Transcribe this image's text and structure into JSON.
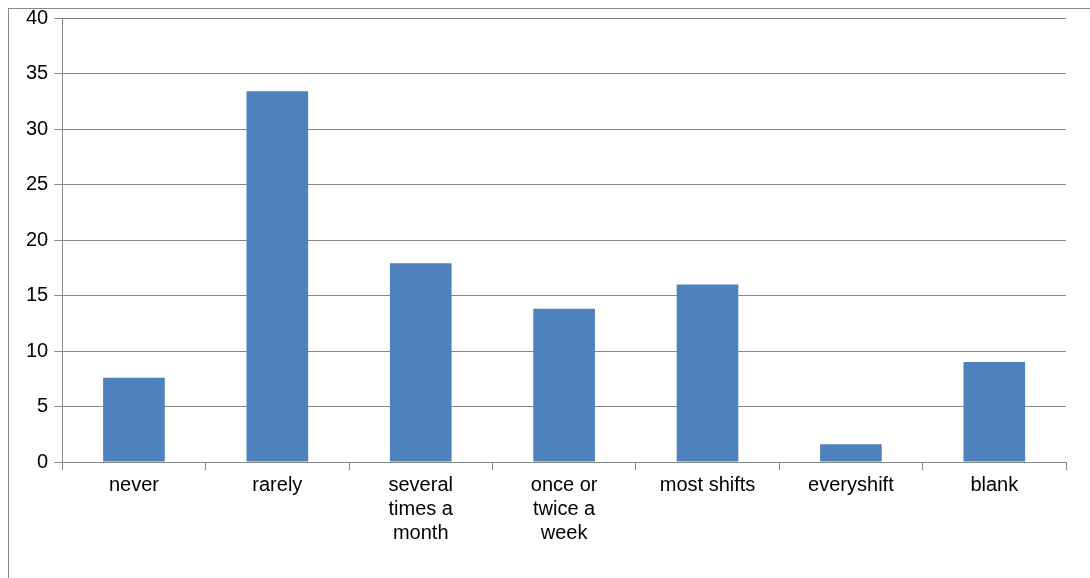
{
  "chart_data": {
    "type": "bar",
    "categories": [
      "never",
      "rarely",
      "several times a month",
      "once or twice a week",
      "most shifts",
      "everyshift",
      "blank"
    ],
    "values": [
      7.6,
      33.4,
      17.9,
      13.8,
      16.0,
      1.6,
      9.0
    ],
    "color": "#4f81bd",
    "ylim": [
      0,
      40
    ],
    "yticks": [
      0,
      5,
      10,
      15,
      20,
      25,
      30,
      35,
      40
    ],
    "grid": "y",
    "legend": false
  }
}
